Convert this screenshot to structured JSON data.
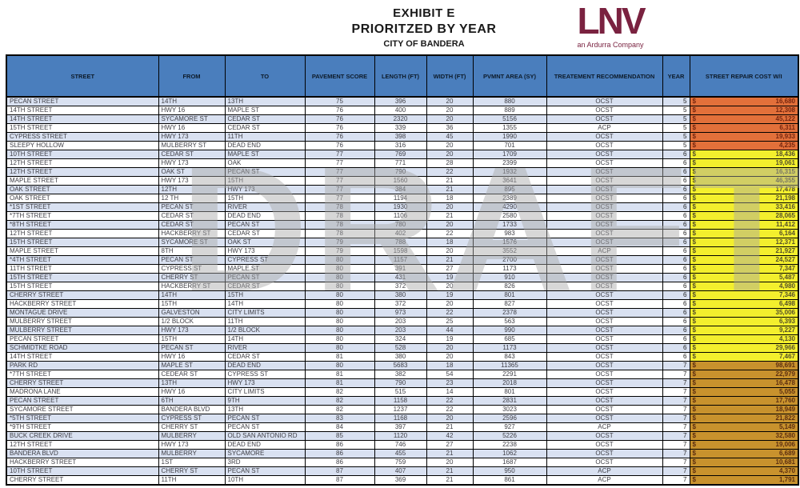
{
  "header": {
    "title1": "EXHIBIT E",
    "title2": "PRIORITZED BY YEAR",
    "title3": "CITY OF BANDERA"
  },
  "logo": {
    "text": "LNV",
    "tagline": "an Ardurra Company",
    "color": "#7A2240"
  },
  "watermark": {
    "text": "DRAFT",
    "color": "#A8A8A8"
  },
  "table": {
    "columns": [
      "STREET",
      "FROM",
      "TO",
      "PAVEMENT SCORE",
      "LENGTH (FT)",
      "WIDTH (FT)",
      "PVMNT AREA (SY)",
      "TREATEMENT RECOMMENDATION",
      "YEAR",
      "STREET REPAIR COST W/I"
    ],
    "currency": "$",
    "colors": {
      "header_bg": "#4A7EBD",
      "row_alt": "#D9E1F1",
      "border": "#000000",
      "year_cost_bg": {
        "5": "#E2703A",
        "6": "#F3EF2D",
        "7": "#C8922D"
      },
      "year_cost_text": {
        "5": "#77260F",
        "6": "#55502A",
        "7": "#5C2E10"
      }
    },
    "rows": [
      [
        "PECAN STREET",
        "14TH",
        "13TH",
        75,
        396,
        20,
        880,
        "OCST",
        5,
        "16,680"
      ],
      [
        "14TH STREET",
        "HWY 16",
        "MAPLE ST",
        76,
        400,
        20,
        889,
        "OCST",
        5,
        "12,308"
      ],
      [
        "14TH STREET",
        "SYCAMORE ST",
        "CEDAR ST",
        76,
        2320,
        20,
        5156,
        "OCST",
        5,
        "45,122"
      ],
      [
        "15TH STREET",
        "HWY 16",
        "CEDAR ST",
        76,
        339,
        36,
        1355,
        "ACP",
        5,
        "6,311"
      ],
      [
        "CYPRESS STREET",
        "HWY 173",
        "11TH",
        76,
        398,
        45,
        1990,
        "OCST",
        5,
        "19,933"
      ],
      [
        "SLEEPY HOLLOW",
        "MULBERRY ST",
        "DEAD END",
        76,
        316,
        20,
        701,
        "OCST",
        5,
        "4,235"
      ],
      [
        "10TH STREET",
        "CEDAR ST",
        "MAPLE ST",
        77,
        769,
        20,
        1709,
        "OCST",
        6,
        "18,436"
      ],
      [
        "12TH STREET",
        "HWY 173",
        "OAK",
        77,
        771,
        28,
        2399,
        "OCST",
        6,
        "19,061"
      ],
      [
        "12TH STREET",
        "OAK ST",
        "PECAN ST",
        77,
        790,
        22,
        1932,
        "OCST",
        6,
        "16,315"
      ],
      [
        "MAPLE STREET",
        "HWY 173",
        "15TH",
        77,
        1560,
        21,
        3641,
        "OCST",
        6,
        "46,355"
      ],
      [
        "OAK STREET",
        "12TH",
        "HWY 173",
        77,
        384,
        21,
        895,
        "OCST",
        6,
        "17,478"
      ],
      [
        "OAK STREET",
        "12 TH",
        "15TH",
        77,
        1194,
        18,
        2389,
        "OCST",
        6,
        "21,198"
      ],
      [
        "*1ST STREET",
        "PECAN ST",
        "RIVER",
        78,
        1930,
        20,
        4290,
        "OCST",
        6,
        "33,416"
      ],
      [
        "*7TH STREET",
        "CEDAR ST",
        "DEAD END",
        78,
        1106,
        21,
        2580,
        "OCST",
        6,
        "28,065"
      ],
      [
        "*8TH STREET",
        "CEDAR ST",
        "PECAN ST",
        78,
        780,
        20,
        1733,
        "OCST",
        6,
        "11,412"
      ],
      [
        "12TH STREET",
        "HACKBERRY ST",
        "CEDAR ST",
        78,
        402,
        22,
        983,
        "OCST",
        6,
        "6,164"
      ],
      [
        "15TH STREET",
        "SYCAMORE ST",
        "OAK ST",
        79,
        788,
        18,
        1576,
        "OCST",
        6,
        "12,371"
      ],
      [
        "MAPLE STREET",
        "8TH",
        "HWY 173",
        79,
        1598,
        20,
        3552,
        "ACP",
        6,
        "21,927"
      ],
      [
        "*4TH STREET",
        "PECAN ST",
        "CYPRESS ST",
        80,
        1157,
        21,
        2700,
        "OCST",
        6,
        "24,527"
      ],
      [
        "11TH STREET",
        "CYPRESS ST",
        "MAPLE ST",
        80,
        391,
        27,
        1173,
        "OCST",
        6,
        "7,347"
      ],
      [
        "15TH STREET",
        "CHERRY ST",
        "PECAN ST",
        80,
        431,
        19,
        910,
        "OCST",
        6,
        "5,487"
      ],
      [
        "15TH STREET",
        "HACKBERRY ST",
        "CEDAR ST",
        80,
        372,
        20,
        826,
        "OCST",
        6,
        "4,980"
      ],
      [
        "CHERRY STREET",
        "14TH",
        "15TH",
        80,
        380,
        19,
        801,
        "OCST",
        6,
        "7,346"
      ],
      [
        "HACKBERRY STREET",
        "15TH",
        "14TH",
        80,
        372,
        20,
        827,
        "OCST",
        6,
        "6,498"
      ],
      [
        "MONTAGUE DRIVE",
        "GALVESTON",
        "CITY LIMITS",
        80,
        973,
        22,
        2378,
        "OCST",
        6,
        "35,006"
      ],
      [
        "MULBERRY STREET",
        "1/2 BLOCK",
        "11TH",
        80,
        203,
        25,
        563,
        "OCST",
        6,
        "6,393"
      ],
      [
        "MULBERRY STREET",
        "HWY 173",
        "1/2 BLOCK",
        80,
        203,
        44,
        990,
        "OCST",
        6,
        "9,227"
      ],
      [
        "PECAN STREET",
        "15TH",
        "14TH",
        80,
        324,
        19,
        685,
        "OCST",
        6,
        "4,130"
      ],
      [
        "SCHMIDTKE ROAD",
        "PECAN ST",
        "RIVER",
        80,
        528,
        20,
        1173,
        "OCST",
        6,
        "29,966"
      ],
      [
        "14TH STREET",
        "HWY 16",
        "CEDAR ST",
        81,
        380,
        20,
        843,
        "OCST",
        6,
        "7,467"
      ],
      [
        "PARK RD",
        "MAPLE ST",
        "DEAD END",
        80,
        5683,
        18,
        11365,
        "OCST",
        7,
        "98,691"
      ],
      [
        "*7TH STREET",
        "CEDEAR ST",
        "CYPRESS ST",
        81,
        382,
        54,
        2291,
        "OCST",
        7,
        "22,979"
      ],
      [
        "CHERRY STREET",
        "13TH",
        "HWY 173",
        81,
        790,
        23,
        2018,
        "OCST",
        7,
        "16,478"
      ],
      [
        "MADRONA LANE",
        "HWY 16",
        "CITY LIMITS",
        82,
        515,
        14,
        801,
        "OCST",
        7,
        "5,055"
      ],
      [
        "PECAN STREET",
        "6TH",
        "9TH",
        82,
        1158,
        22,
        2831,
        "OCST",
        7,
        "17,760"
      ],
      [
        "SYCAMORE STREET",
        "BANDERA BLVD",
        "13TH",
        82,
        1237,
        22,
        3023,
        "OCST",
        7,
        "18,949"
      ],
      [
        "*5TH STREET",
        "CYPRESS ST",
        "PECAN ST",
        83,
        1168,
        20,
        2596,
        "OCST",
        7,
        "21,822"
      ],
      [
        "*9TH STREET",
        "CHERRY ST",
        "PECAN ST",
        84,
        397,
        21,
        927,
        "ACP",
        7,
        "5,149"
      ],
      [
        "BUCK CREEK DRIVE",
        "MULBERRY",
        "OLD SAN ANTONIO RD",
        85,
        1120,
        42,
        5226,
        "OCST",
        7,
        "32,580"
      ],
      [
        "12TH STREET",
        "HWY 173",
        "DEAD END",
        86,
        746,
        27,
        2238,
        "OCST",
        7,
        "19,006"
      ],
      [
        "BANDERA BLVD",
        "MULBERRY",
        "SYCAMORE",
        86,
        455,
        21,
        1062,
        "OCST",
        7,
        "6,689"
      ],
      [
        "HACKBERRY STREET",
        "1ST",
        "3RD",
        86,
        759,
        20,
        1687,
        "OCST",
        7,
        "10,681"
      ],
      [
        "10TH STREET",
        "CHERRY ST",
        "PECAN ST",
        87,
        407,
        21,
        950,
        "ACP",
        7,
        "4,370"
      ],
      [
        "CHERRY STREET",
        "11TH",
        "10TH",
        87,
        369,
        21,
        861,
        "ACP",
        7,
        "1,791"
      ]
    ]
  }
}
